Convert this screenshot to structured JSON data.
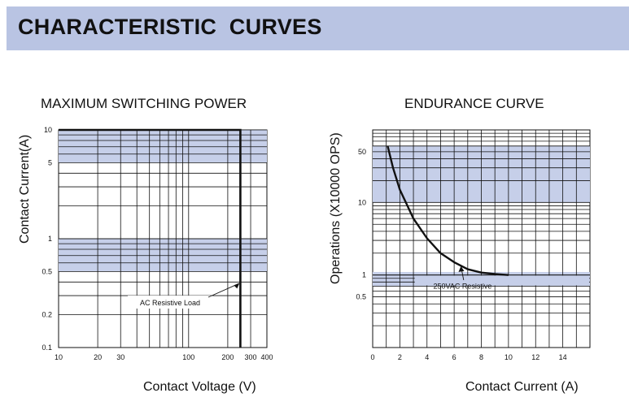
{
  "header": {
    "title": "CHARACTERISTIC  CURVES"
  },
  "colors": {
    "banner": "#b9c4e3",
    "band": "#c6cfe9",
    "band_dark": "#aebadf",
    "grid": "#111111",
    "curve": "#111111"
  },
  "chart_data": [
    {
      "type": "line",
      "title": "MAXIMUM SWITCHING POWER",
      "xlabel": "Contact Voltage (V)",
      "ylabel": "Contact Current(A)",
      "xscale": "log",
      "yscale": "log",
      "xlim": [
        10,
        400
      ],
      "ylim": [
        0.1,
        10
      ],
      "x_ticks": [
        "10",
        "20",
        "30",
        "100",
        "200",
        "300",
        "400"
      ],
      "x_tick_values": [
        10,
        20,
        30,
        100,
        200,
        300,
        400
      ],
      "y_ticks": [
        "10",
        "5",
        "1",
        "0.5",
        "0.2",
        "0.1"
      ],
      "y_tick_values": [
        10,
        5,
        1,
        0.5,
        0.2,
        0.1
      ],
      "grid": true,
      "series": [
        {
          "x": [
            10,
            250,
            250
          ],
          "y": [
            10,
            10,
            0.1
          ]
        }
      ],
      "annotations": [
        {
          "text": "AC Resistive Load",
          "x": 250,
          "y": 0.4
        }
      ]
    },
    {
      "type": "line",
      "title": "ENDURANCE CURVE",
      "xlabel": "Contact Current (A)",
      "ylabel": "Operations (X10000 OPS)",
      "yscale": "log",
      "xlim": [
        0,
        16
      ],
      "ylim": [
        0.1,
        100
      ],
      "x_ticks": [
        "0",
        "2",
        "4",
        "6",
        "8",
        "10",
        "12",
        "14"
      ],
      "x_tick_values": [
        0,
        2,
        4,
        6,
        8,
        10,
        12,
        14
      ],
      "y_ticks": [
        "50",
        "10",
        "1",
        "0.5"
      ],
      "y_tick_values": [
        50,
        10,
        1,
        0.5
      ],
      "grid": true,
      "series": [
        {
          "x": [
            1.1,
            1.5,
            2,
            3,
            4,
            5,
            6,
            7,
            8,
            9,
            10
          ],
          "y": [
            60,
            30,
            15,
            6,
            3.2,
            2,
            1.5,
            1.2,
            1.08,
            1.03,
            1.0
          ]
        }
      ],
      "annotations": [
        {
          "text": "250VAC Resistive",
          "x": 6.5,
          "y": 0.7
        }
      ]
    }
  ]
}
